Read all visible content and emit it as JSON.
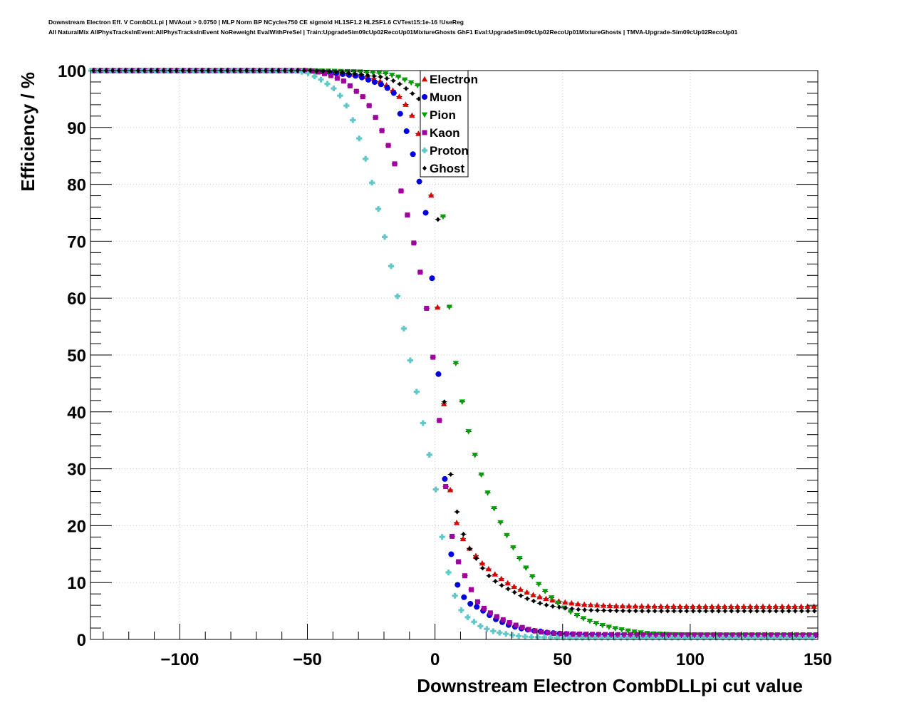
{
  "header": {
    "line1": "Downstream Electron Eff. V CombDLLpi | MVAout > 0.0750 | MLP Norm BP NCycles750 CE sigmoid HL1SF1.2 HL2SF1.6 CVTest15:1e-16 !UseReg",
    "line2": "All NaturalMix AllPhysTracksInEvent:AllPhysTracksInEvent NoReweight EvalWithPreSel | Train:UpgradeSim09cUp02RecoUp01MixtureGhosts GhF1 Eval:UpgradeSim09cUp02RecoUp01MixtureGhosts | TMVA-Upgrade-Sim09cUp02RecoUp01"
  },
  "chart_data": {
    "type": "scatter",
    "xlabel": "Downstream Electron CombDLLpi cut value",
    "ylabel": "Efficiency / %",
    "xlim": [
      -135,
      150
    ],
    "ylim": [
      0,
      100
    ],
    "xticks": [
      -100,
      -50,
      0,
      50,
      100,
      150
    ],
    "xtick_labels": [
      "−100",
      "−50",
      "0",
      "50",
      "100",
      "150"
    ],
    "yticks": [
      0,
      10,
      20,
      30,
      40,
      50,
      60,
      70,
      80,
      90,
      100
    ],
    "yticks_labels": [
      "0",
      "10",
      "20",
      "30",
      "40",
      "50",
      "60",
      "70",
      "80",
      "90",
      "100"
    ],
    "grid": true,
    "legend_position": "top-center",
    "x_start": -134,
    "x_step": 2.5,
    "x_count": 114,
    "series": [
      {
        "name": "Electron",
        "color": "#e00000",
        "marker": "triangle-up",
        "points": [
          [
            -134,
            100
          ],
          [
            -50,
            100
          ],
          [
            -40,
            99.7
          ],
          [
            -30,
            99.3
          ],
          [
            -25,
            98.8
          ],
          [
            -20,
            97.8
          ],
          [
            -15,
            96.0
          ],
          [
            -10,
            93.2
          ],
          [
            -7,
            90.0
          ],
          [
            -5,
            85.7
          ],
          [
            -2,
            79.5
          ],
          [
            -1,
            76.7
          ],
          [
            -0.5,
            70.2
          ],
          [
            0.8,
            60.0
          ],
          [
            1.8,
            52.0
          ],
          [
            4,
            38.3
          ],
          [
            5,
            32.5
          ],
          [
            6.5,
            23.2
          ],
          [
            8,
            21.2
          ],
          [
            10,
            18.5
          ],
          [
            12.5,
            16.5
          ],
          [
            15,
            15.3
          ],
          [
            17.5,
            13.8
          ],
          [
            20,
            12.8
          ],
          [
            22.5,
            11.8
          ],
          [
            25,
            11.0
          ],
          [
            27.5,
            10.2
          ],
          [
            30,
            9.5
          ],
          [
            32.5,
            9.0
          ],
          [
            35,
            8.5
          ],
          [
            37.5,
            8.0
          ],
          [
            40,
            7.6
          ],
          [
            42.5,
            7.3
          ],
          [
            45,
            7.0
          ],
          [
            47.5,
            6.8
          ],
          [
            50,
            6.6
          ],
          [
            55,
            6.3
          ],
          [
            60,
            6.1
          ],
          [
            65,
            6.0
          ],
          [
            70,
            5.9
          ],
          [
            80,
            5.85
          ],
          [
            100,
            5.8
          ],
          [
            150,
            5.8
          ]
        ]
      },
      {
        "name": "Muon",
        "color": "#0000e0",
        "marker": "circle",
        "points": [
          [
            -134,
            100
          ],
          [
            -50,
            100
          ],
          [
            -40,
            99.6
          ],
          [
            -30,
            99.0
          ],
          [
            -25,
            98.2
          ],
          [
            -20,
            97.4
          ],
          [
            -16,
            96.0
          ],
          [
            -15,
            94.3
          ],
          [
            -13,
            91.5
          ],
          [
            -10,
            88.0
          ],
          [
            -7.5,
            83.0
          ],
          [
            -4,
            76.5
          ],
          [
            -1.5,
            65.8
          ],
          [
            0.8,
            50.7
          ],
          [
            4,
            27.1
          ],
          [
            6.5,
            14.2
          ],
          [
            9,
            9.3
          ],
          [
            11.5,
            7.3
          ],
          [
            14,
            6.2
          ],
          [
            16.5,
            5.7
          ],
          [
            19,
            5.0
          ],
          [
            21.5,
            4.2
          ],
          [
            24,
            3.5
          ],
          [
            26.5,
            3.0
          ],
          [
            29,
            2.5
          ],
          [
            31.5,
            2.2
          ],
          [
            34,
            1.9
          ],
          [
            36.5,
            1.7
          ],
          [
            39,
            1.5
          ],
          [
            41.5,
            1.4
          ],
          [
            44,
            1.2
          ],
          [
            46.5,
            1.1
          ],
          [
            50,
            1.0
          ],
          [
            60,
            0.8
          ],
          [
            80,
            0.7
          ],
          [
            100,
            0.7
          ],
          [
            150,
            0.7
          ]
        ]
      },
      {
        "name": "Pion",
        "color": "#00a000",
        "marker": "triangle-down",
        "points": [
          [
            -134,
            100
          ],
          [
            -50,
            100
          ],
          [
            -30,
            99.8
          ],
          [
            -20,
            99.5
          ],
          [
            -15,
            99.0
          ],
          [
            -10,
            98.0
          ],
          [
            -5,
            97.0
          ],
          [
            -2.5,
            96.0
          ],
          [
            0,
            95.0
          ],
          [
            1.5,
            88.0
          ],
          [
            2.5,
            80.5
          ],
          [
            4,
            66.2
          ],
          [
            6.5,
            54.4
          ],
          [
            9,
            45.5
          ],
          [
            12,
            38.7
          ],
          [
            14.5,
            34.0
          ],
          [
            17,
            30.5
          ],
          [
            19.5,
            27.1
          ],
          [
            22,
            24.2
          ],
          [
            24.5,
            21.6
          ],
          [
            27,
            19.3
          ],
          [
            29.5,
            17.1
          ],
          [
            32,
            15.0
          ],
          [
            34.5,
            13.3
          ],
          [
            37,
            11.7
          ],
          [
            39.5,
            10.3
          ],
          [
            42,
            9.0
          ],
          [
            44.5,
            7.8
          ],
          [
            47,
            6.8
          ],
          [
            49.5,
            5.9
          ],
          [
            52,
            5.1
          ],
          [
            54.5,
            4.5
          ],
          [
            57,
            3.9
          ],
          [
            59.5,
            3.4
          ],
          [
            62,
            3.0
          ],
          [
            64.5,
            2.6
          ],
          [
            67,
            2.3
          ],
          [
            69.5,
            2.0
          ],
          [
            72,
            1.8
          ],
          [
            74.5,
            1.6
          ],
          [
            77,
            1.4
          ],
          [
            80,
            1.2
          ],
          [
            85,
            1.0
          ],
          [
            90,
            0.9
          ],
          [
            100,
            0.8
          ],
          [
            150,
            0.7
          ]
        ]
      },
      {
        "name": "Kaon",
        "color": "#a000a0",
        "marker": "square",
        "points": [
          [
            -134,
            100
          ],
          [
            -50,
            100
          ],
          [
            -45,
            99.7
          ],
          [
            -40,
            99.0
          ],
          [
            -35,
            98.0
          ],
          [
            -32,
            96.8
          ],
          [
            -28,
            95.3
          ],
          [
            -25,
            93.3
          ],
          [
            -22,
            90.6
          ],
          [
            -19,
            87.7
          ],
          [
            -16,
            84.0
          ],
          [
            -14,
            80.0
          ],
          [
            -11,
            75.0
          ],
          [
            -8,
            69.1
          ],
          [
            -5,
            62.9
          ],
          [
            -2.5,
            56.0
          ],
          [
            0,
            46.6
          ],
          [
            3,
            32.3
          ],
          [
            5.5,
            21.0
          ],
          [
            8,
            15.0
          ],
          [
            10.5,
            12.2
          ],
          [
            13,
            10.1
          ],
          [
            15.5,
            7.3
          ],
          [
            18,
            5.9
          ],
          [
            20.5,
            5.0
          ],
          [
            23,
            4.3
          ],
          [
            25.5,
            3.7
          ],
          [
            28,
            3.2
          ],
          [
            30.5,
            2.7
          ],
          [
            33,
            2.3
          ],
          [
            35.5,
            1.9
          ],
          [
            38,
            1.6
          ],
          [
            40.5,
            1.4
          ],
          [
            43,
            1.2
          ],
          [
            45.5,
            1.1
          ],
          [
            50,
            1.0
          ],
          [
            60,
            0.9
          ],
          [
            80,
            0.8
          ],
          [
            150,
            0.8
          ]
        ]
      },
      {
        "name": "Proton",
        "color": "#60c8c8",
        "marker": "cross",
        "points": [
          [
            -134,
            100
          ],
          [
            -55,
            100
          ],
          [
            -50,
            99.6
          ],
          [
            -45,
            98.5
          ],
          [
            -40,
            97.0
          ],
          [
            -36,
            95.0
          ],
          [
            -33,
            92.3
          ],
          [
            -30,
            88.5
          ],
          [
            -27,
            84.2
          ],
          [
            -24,
            79.1
          ],
          [
            -21,
            73.4
          ],
          [
            -18,
            67.3
          ],
          [
            -15,
            61.0
          ],
          [
            -12,
            54.2
          ],
          [
            -9,
            47.5
          ],
          [
            -6,
            40.9
          ],
          [
            -3,
            34.3
          ],
          [
            0,
            27.4
          ],
          [
            2.5,
            18.8
          ],
          [
            5,
            12.3
          ],
          [
            7.5,
            8.0
          ],
          [
            10,
            5.3
          ],
          [
            12.5,
            4.0
          ],
          [
            15,
            3.2
          ],
          [
            17.5,
            2.4
          ],
          [
            20,
            1.9
          ],
          [
            22.5,
            1.5
          ],
          [
            25,
            1.2
          ],
          [
            27.5,
            1.0
          ],
          [
            30,
            0.8
          ],
          [
            32.5,
            0.6
          ],
          [
            35,
            0.5
          ],
          [
            40,
            0.4
          ],
          [
            50,
            0.3
          ],
          [
            80,
            0.3
          ],
          [
            150,
            0.3
          ]
        ]
      },
      {
        "name": "Ghost",
        "color": "#000000",
        "marker": "diamond",
        "points": [
          [
            -134,
            100
          ],
          [
            -50,
            100
          ],
          [
            -40,
            99.8
          ],
          [
            -30,
            99.4
          ],
          [
            -20,
            98.8
          ],
          [
            -15,
            98.0
          ],
          [
            -10,
            96.4
          ],
          [
            -5,
            94.5
          ],
          [
            -3,
            91.2
          ],
          [
            -1,
            88.0
          ],
          [
            1,
            77.0
          ],
          [
            1.8,
            60.1
          ],
          [
            4,
            38.3
          ],
          [
            6.5,
            27.5
          ],
          [
            9,
            21.6
          ],
          [
            11.5,
            18.0
          ],
          [
            14,
            15.6
          ],
          [
            16.5,
            14.0
          ],
          [
            19,
            12.3
          ],
          [
            21.5,
            11.0
          ],
          [
            24,
            10.1
          ],
          [
            26.5,
            9.4
          ],
          [
            29,
            8.8
          ],
          [
            31.5,
            8.2
          ],
          [
            34,
            7.6
          ],
          [
            36.5,
            7.1
          ],
          [
            39,
            6.7
          ],
          [
            41.5,
            6.3
          ],
          [
            44,
            6.0
          ],
          [
            46.5,
            5.8
          ],
          [
            50,
            5.6
          ],
          [
            55,
            5.3
          ],
          [
            60,
            5.15
          ],
          [
            70,
            5.05
          ],
          [
            80,
            5.0
          ],
          [
            100,
            5.0
          ],
          [
            150,
            5.0
          ]
        ]
      }
    ]
  }
}
